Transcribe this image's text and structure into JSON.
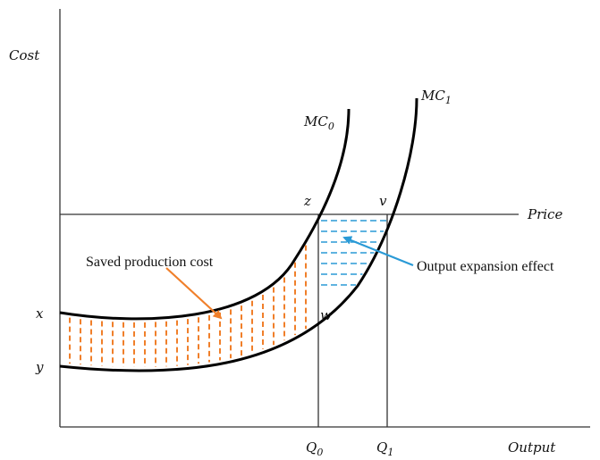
{
  "axes": {
    "y_label": "Cost",
    "x_label": "Output",
    "price_label": "Price"
  },
  "curves": {
    "mc0_label": "MC",
    "mc0_sub": "0",
    "mc1_label": "MC",
    "mc1_sub": "1"
  },
  "points": {
    "x": "x",
    "y": "y",
    "z": "z",
    "v": "v",
    "w": "w"
  },
  "quantities": {
    "q0_label": "Q",
    "q0_sub": "0",
    "q1_label": "Q",
    "q1_sub": "1"
  },
  "annotations": {
    "saved_cost": "Saved production cost",
    "expansion": "Output expansion effect"
  },
  "colors": {
    "curve": "#000000",
    "axis": "#333333",
    "saved_hatch": "#f07f2a",
    "expansion_hatch": "#2a9ad6"
  }
}
